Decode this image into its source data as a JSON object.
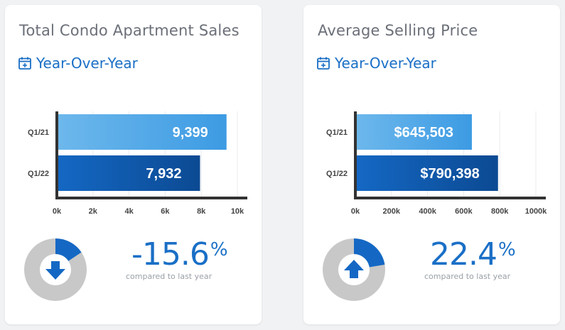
{
  "colors": {
    "accent": "#1a6fc6",
    "bar_light_start": "#6db8ec",
    "bar_light_end": "#3d9be3",
    "bar_dark_start": "#1468c4",
    "bar_dark_end": "#0c4a93",
    "axis": "#333333",
    "grid": "#e9ebee",
    "donut_track": "#c8c8c8",
    "donut_fill": "#1468c4"
  },
  "cards": [
    {
      "title": "Total Condo Apartment Sales",
      "period_icon": "calendar-plus-icon",
      "period_label": "Year-Over-Year",
      "change": {
        "value": "-15.6",
        "sign": "%",
        "caption": "compared to last year",
        "direction": "down",
        "indicator_icon": "arrow-down-icon",
        "fraction": 0.156
      }
    },
    {
      "title": "Average Selling Price",
      "period_icon": "calendar-plus-icon",
      "period_label": "Year-Over-Year",
      "change": {
        "value": "22.4",
        "sign": "%",
        "caption": "compared to last year",
        "direction": "up",
        "indicator_icon": "arrow-up-icon",
        "fraction": 0.224
      }
    }
  ],
  "chart_data": [
    {
      "type": "bar",
      "orientation": "horizontal",
      "categories": [
        "Q1/21",
        "Q1/22"
      ],
      "values": [
        9399,
        7932
      ],
      "value_labels": [
        "9,399",
        "7,932"
      ],
      "xlim": [
        0,
        10000
      ],
      "xticks": [
        0,
        2000,
        4000,
        6000,
        8000,
        10000
      ],
      "xtick_labels": [
        "0k",
        "2k",
        "4k",
        "6k",
        "8k",
        "10k"
      ],
      "grid": true
    },
    {
      "type": "bar",
      "orientation": "horizontal",
      "categories": [
        "Q1/21",
        "Q1/22"
      ],
      "values": [
        645503,
        790398
      ],
      "value_labels": [
        "$645,503",
        "$790,398"
      ],
      "xlim": [
        0,
        1000000
      ],
      "xticks": [
        0,
        200000,
        400000,
        600000,
        800000,
        1000000
      ],
      "xtick_labels": [
        "0k",
        "200k",
        "400k",
        "600k",
        "800k",
        "1000k"
      ],
      "grid": true
    }
  ]
}
